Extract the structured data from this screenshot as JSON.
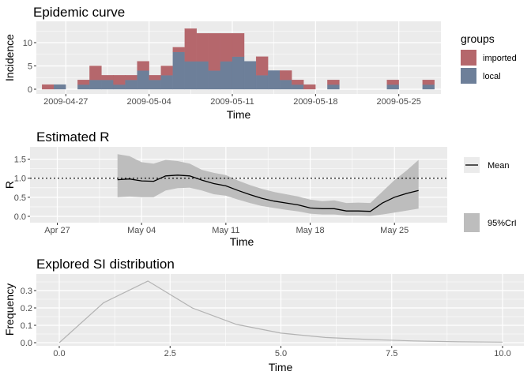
{
  "colors": {
    "imported": "#b5676c",
    "local": "#6d7f99",
    "panel": "#ebebeb",
    "grid": "#ffffff",
    "ribbon": "#bdbdbd",
    "mean_line": "#000000",
    "si_line": "#b3b3b3"
  },
  "chart_data": [
    {
      "type": "bar",
      "title": "Epidemic curve",
      "xlabel": "Time",
      "ylabel": "Incidence",
      "x_ticks": [
        "2009-04-27",
        "2009-05-04",
        "2009-05-11",
        "2009-05-18",
        "2009-05-25"
      ],
      "y_ticks": [
        "0",
        "5",
        "10"
      ],
      "ylim": [
        0,
        13
      ],
      "legend": {
        "title": "groups",
        "position": "right",
        "entries": [
          "imported",
          "local"
        ]
      },
      "categories": [
        "2009-04-27",
        "2009-04-28",
        "2009-04-29",
        "2009-04-30",
        "2009-05-01",
        "2009-05-02",
        "2009-05-03",
        "2009-05-04",
        "2009-05-05",
        "2009-05-06",
        "2009-05-07",
        "2009-05-08",
        "2009-05-09",
        "2009-05-10",
        "2009-05-11",
        "2009-05-12",
        "2009-05-13",
        "2009-05-14",
        "2009-05-15",
        "2009-05-16",
        "2009-05-17",
        "2009-05-18",
        "2009-05-19",
        "2009-05-20",
        "2009-05-21",
        "2009-05-22",
        "2009-05-23",
        "2009-05-24",
        "2009-05-25",
        "2009-05-26",
        "2009-05-27",
        "2009-05-28",
        "2009-05-29"
      ],
      "series": [
        {
          "name": "local",
          "values": [
            0,
            1,
            0,
            1,
            2,
            2,
            1,
            2,
            4,
            2,
            3,
            8,
            6,
            6,
            4,
            6,
            7,
            6,
            3,
            4,
            2,
            1,
            0,
            0,
            1,
            0,
            0,
            0,
            0,
            1,
            0,
            0,
            1
          ]
        },
        {
          "name": "imported",
          "values": [
            1,
            0,
            0,
            1,
            3,
            1,
            2,
            1,
            2,
            1,
            2,
            1,
            7,
            6,
            8,
            6,
            5,
            0,
            4,
            0,
            2,
            1,
            1,
            0,
            1,
            0,
            0,
            0,
            0,
            1,
            0,
            0,
            1
          ]
        }
      ]
    },
    {
      "type": "line",
      "title": "Estimated R",
      "xlabel": "Time",
      "ylabel": "R",
      "x_ticks": [
        "Apr 27",
        "May 04",
        "May 11",
        "May 18",
        "May 25"
      ],
      "y_ticks": [
        "0.0",
        "0.5",
        "1.0",
        "1.5"
      ],
      "ylim": [
        0,
        1.75
      ],
      "reference_line": 1.0,
      "legend": {
        "position": "right",
        "entries": [
          "Mean",
          "95%CrI"
        ]
      },
      "x": [
        7,
        8,
        9,
        10,
        11,
        12,
        13,
        14,
        15,
        16,
        17,
        18,
        19,
        20,
        21,
        22,
        23,
        24,
        25,
        26,
        27,
        28,
        29,
        30,
        31,
        32
      ],
      "series": [
        {
          "name": "Mean",
          "values": [
            0.96,
            0.98,
            0.93,
            0.92,
            1.06,
            1.08,
            1.06,
            0.95,
            0.86,
            0.8,
            0.68,
            0.57,
            0.47,
            0.4,
            0.35,
            0.3,
            0.22,
            0.2,
            0.2,
            0.14,
            0.14,
            0.13,
            0.35,
            0.5,
            0.6,
            0.68
          ]
        },
        {
          "name": "lower",
          "values": [
            0.5,
            0.52,
            0.5,
            0.5,
            0.68,
            0.74,
            0.75,
            0.68,
            0.58,
            0.54,
            0.44,
            0.35,
            0.27,
            0.22,
            0.17,
            0.13,
            0.07,
            0.05,
            0.05,
            0.02,
            0.02,
            0.01,
            0.05,
            0.1,
            0.15,
            0.2
          ]
        },
        {
          "name": "upper",
          "values": [
            1.63,
            1.58,
            1.42,
            1.38,
            1.48,
            1.45,
            1.38,
            1.22,
            1.14,
            1.08,
            0.94,
            0.82,
            0.72,
            0.64,
            0.58,
            0.52,
            0.44,
            0.4,
            0.42,
            0.35,
            0.36,
            0.35,
            0.65,
            0.95,
            1.2,
            1.48
          ]
        }
      ]
    },
    {
      "type": "line",
      "title": "Explored SI distribution",
      "xlabel": "Time",
      "ylabel": "Frequency",
      "x_ticks": [
        "0.0",
        "2.5",
        "5.0",
        "7.5",
        "10.0"
      ],
      "y_ticks": [
        "0.0",
        "0.1",
        "0.2",
        "0.3"
      ],
      "xlim": [
        -0.5,
        10.5
      ],
      "ylim": [
        -0.01,
        0.375
      ],
      "x": [
        0,
        1,
        2,
        3,
        4,
        5,
        6,
        7,
        8,
        9,
        10
      ],
      "series": [
        {
          "values": [
            0,
            0.23,
            0.355,
            0.2,
            0.105,
            0.055,
            0.03,
            0.018,
            0.01,
            0.005,
            0.003
          ]
        }
      ]
    }
  ]
}
